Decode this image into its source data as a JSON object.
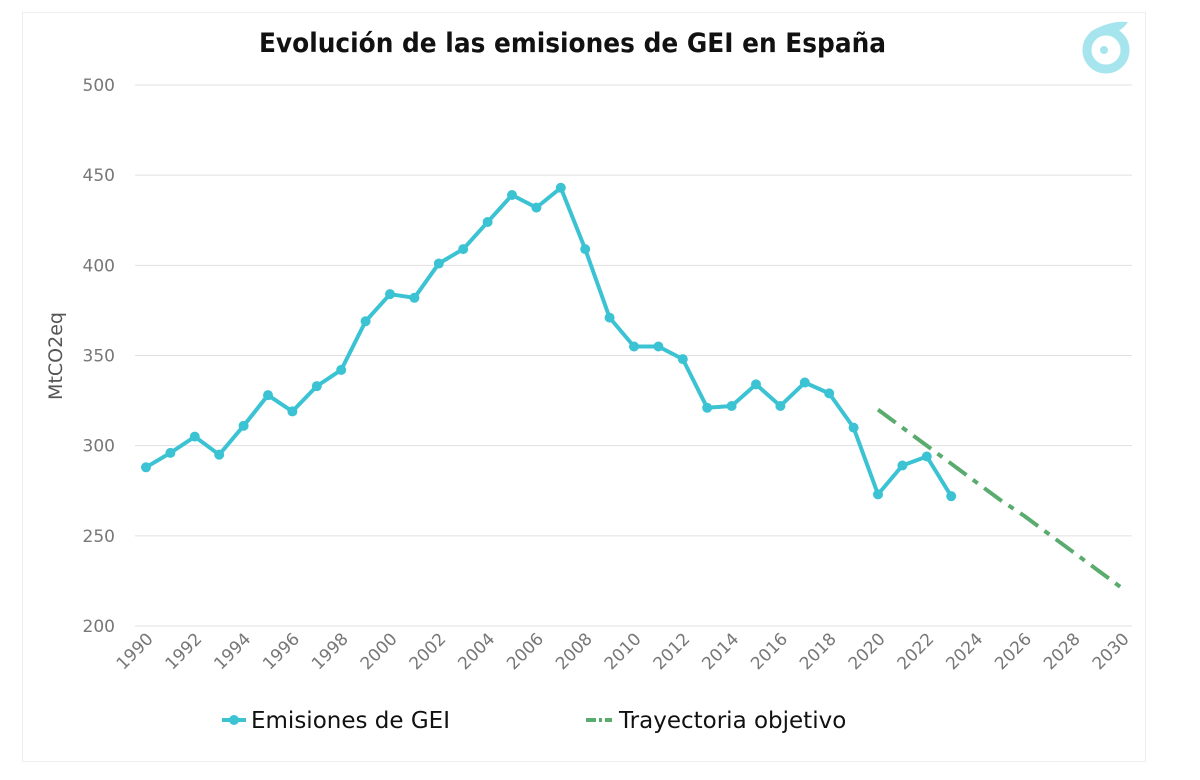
{
  "chart_data": {
    "type": "line",
    "title": "Evolución de las emisiones de GEI en España",
    "xlabel": "",
    "ylabel": "MtCO2eq",
    "xlim": [
      1990,
      2030
    ],
    "ylim": [
      200,
      500
    ],
    "yticks": [
      200,
      250,
      300,
      350,
      400,
      450,
      500
    ],
    "xticks": [
      1990,
      1992,
      1994,
      1996,
      1998,
      2000,
      2002,
      2004,
      2006,
      2008,
      2010,
      2012,
      2014,
      2016,
      2018,
      2020,
      2022,
      2024,
      2026,
      2028,
      2030
    ],
    "grid": true,
    "legend_position": "bottom",
    "series": [
      {
        "name": "Emisiones de GEI",
        "color": "#3cc3d3",
        "style": "solid-markers",
        "x": [
          1990,
          1991,
          1992,
          1993,
          1994,
          1995,
          1996,
          1997,
          1998,
          1999,
          2000,
          2001,
          2002,
          2003,
          2004,
          2005,
          2006,
          2007,
          2008,
          2009,
          2010,
          2011,
          2012,
          2013,
          2014,
          2015,
          2016,
          2017,
          2018,
          2019,
          2020,
          2021,
          2022,
          2023
        ],
        "values": [
          288,
          296,
          305,
          295,
          311,
          328,
          319,
          333,
          342,
          369,
          384,
          382,
          401,
          409,
          424,
          439,
          432,
          443,
          409,
          371,
          355,
          355,
          348,
          321,
          322,
          334,
          322,
          335,
          329,
          310,
          273,
          289,
          294,
          272
        ]
      },
      {
        "name": "Trayectoria objetivo",
        "color": "#5aab6e",
        "style": "dash-dot",
        "x": [
          2020,
          2021,
          2022,
          2023,
          2024,
          2025,
          2026,
          2027,
          2028,
          2029,
          2030
        ],
        "values": [
          320,
          310,
          300,
          290,
          280,
          270,
          261,
          251,
          241,
          231,
          221
        ]
      }
    ]
  }
}
